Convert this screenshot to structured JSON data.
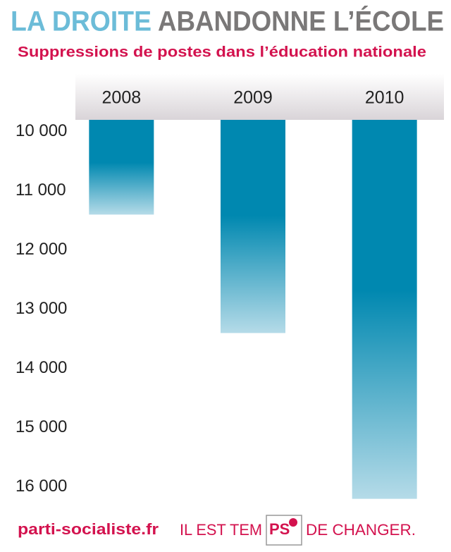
{
  "chart_data": {
    "type": "bar",
    "title_highlight": "LA DROITE",
    "title": "ABANDONNE L’ÉCOLE",
    "subtitle": "Suppressions de postes dans l’éducation nationale",
    "categories": [
      "2008",
      "2009",
      "2010"
    ],
    "values": [
      11400,
      13400,
      16200
    ],
    "color": "#0088b0",
    "ylim": [
      9800,
      16300
    ],
    "yticks": [
      {
        "value": 10000,
        "label": "10 000"
      },
      {
        "value": 11000,
        "label": "11 000"
      },
      {
        "value": 12000,
        "label": "12 000"
      },
      {
        "value": 13000,
        "label": "13 000"
      },
      {
        "value": 14000,
        "label": "14 000"
      },
      {
        "value": 15000,
        "label": "15 000"
      },
      {
        "value": 16000,
        "label": "16 000"
      }
    ],
    "inverted": true
  },
  "footer": {
    "site": "parti-socialiste.fr",
    "slogan_start": "IL EST TEM",
    "logo": "PS",
    "slogan_end": "DE CHANGER."
  }
}
